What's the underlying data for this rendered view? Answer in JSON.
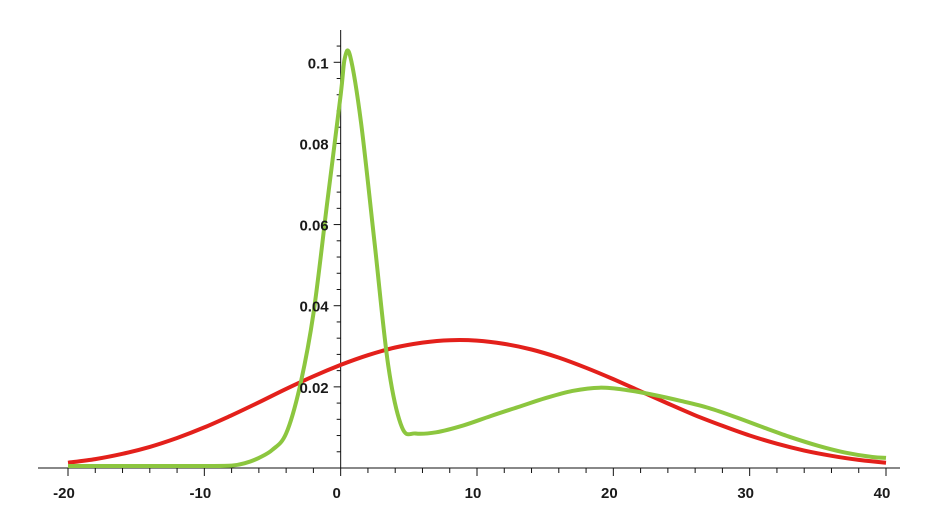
{
  "chart_data": {
    "type": "line",
    "title": "",
    "xlabel": "",
    "ylabel": "",
    "xlim": [
      -20,
      40
    ],
    "ylim": [
      0,
      0.105
    ],
    "grid": false,
    "x_ticks": [
      -20,
      -10,
      0,
      10,
      20,
      30,
      40
    ],
    "x_tick_labels": [
      "-20",
      "-10",
      "0",
      "10",
      "20",
      "30",
      "40"
    ],
    "y_ticks": [
      0.02,
      0.04,
      0.06,
      0.08,
      0.1
    ],
    "y_tick_labels": [
      "0.02",
      "0.04",
      "0.06",
      "0.08",
      "0.1"
    ],
    "series": [
      {
        "color": "#e3201b",
        "points": [
          [
            -20,
            0.0013
          ],
          [
            -18,
            0.0022
          ],
          [
            -16,
            0.0035
          ],
          [
            -14,
            0.0052
          ],
          [
            -12,
            0.0074
          ],
          [
            -10,
            0.01
          ],
          [
            -8,
            0.013
          ],
          [
            -6,
            0.0162
          ],
          [
            -4,
            0.0195
          ],
          [
            -2,
            0.0226
          ],
          [
            0,
            0.0254
          ],
          [
            2,
            0.0278
          ],
          [
            4,
            0.0297
          ],
          [
            6,
            0.0309
          ],
          [
            8,
            0.0315
          ],
          [
            10,
            0.0314
          ],
          [
            12,
            0.0306
          ],
          [
            14,
            0.0292
          ],
          [
            16,
            0.0272
          ],
          [
            18,
            0.0247
          ],
          [
            20,
            0.0219
          ],
          [
            22,
            0.0189
          ],
          [
            24,
            0.0159
          ],
          [
            26,
            0.013
          ],
          [
            28,
            0.0104
          ],
          [
            30,
            0.008
          ],
          [
            32,
            0.006
          ],
          [
            34,
            0.0043
          ],
          [
            36,
            0.003
          ],
          [
            38,
            0.002
          ],
          [
            40,
            0.0013
          ]
        ]
      },
      {
        "color": "#8cc63f",
        "points": [
          [
            -20,
            0.0005
          ],
          [
            -15,
            0.0005
          ],
          [
            -10,
            0.0005
          ],
          [
            -8,
            0.0006
          ],
          [
            -7,
            0.0012
          ],
          [
            -6,
            0.0025
          ],
          [
            -5,
            0.0045
          ],
          [
            -4,
            0.0085
          ],
          [
            -3,
            0.02
          ],
          [
            -2,
            0.038
          ],
          [
            -1,
            0.065
          ],
          [
            0,
            0.092
          ],
          [
            0.3,
            0.101
          ],
          [
            0.7,
            0.1015
          ],
          [
            1.5,
            0.085
          ],
          [
            2.5,
            0.055
          ],
          [
            3.5,
            0.025
          ],
          [
            4.5,
            0.01
          ],
          [
            5.5,
            0.0085
          ],
          [
            7,
            0.0088
          ],
          [
            9,
            0.0105
          ],
          [
            11,
            0.0128
          ],
          [
            13,
            0.015
          ],
          [
            15,
            0.0172
          ],
          [
            17,
            0.019
          ],
          [
            19,
            0.0198
          ],
          [
            21,
            0.0192
          ],
          [
            23,
            0.018
          ],
          [
            25,
            0.0165
          ],
          [
            27,
            0.0148
          ],
          [
            29,
            0.0125
          ],
          [
            31,
            0.01
          ],
          [
            33,
            0.0076
          ],
          [
            35,
            0.0055
          ],
          [
            37,
            0.0038
          ],
          [
            39,
            0.0027
          ],
          [
            40,
            0.0025
          ]
        ]
      }
    ]
  }
}
